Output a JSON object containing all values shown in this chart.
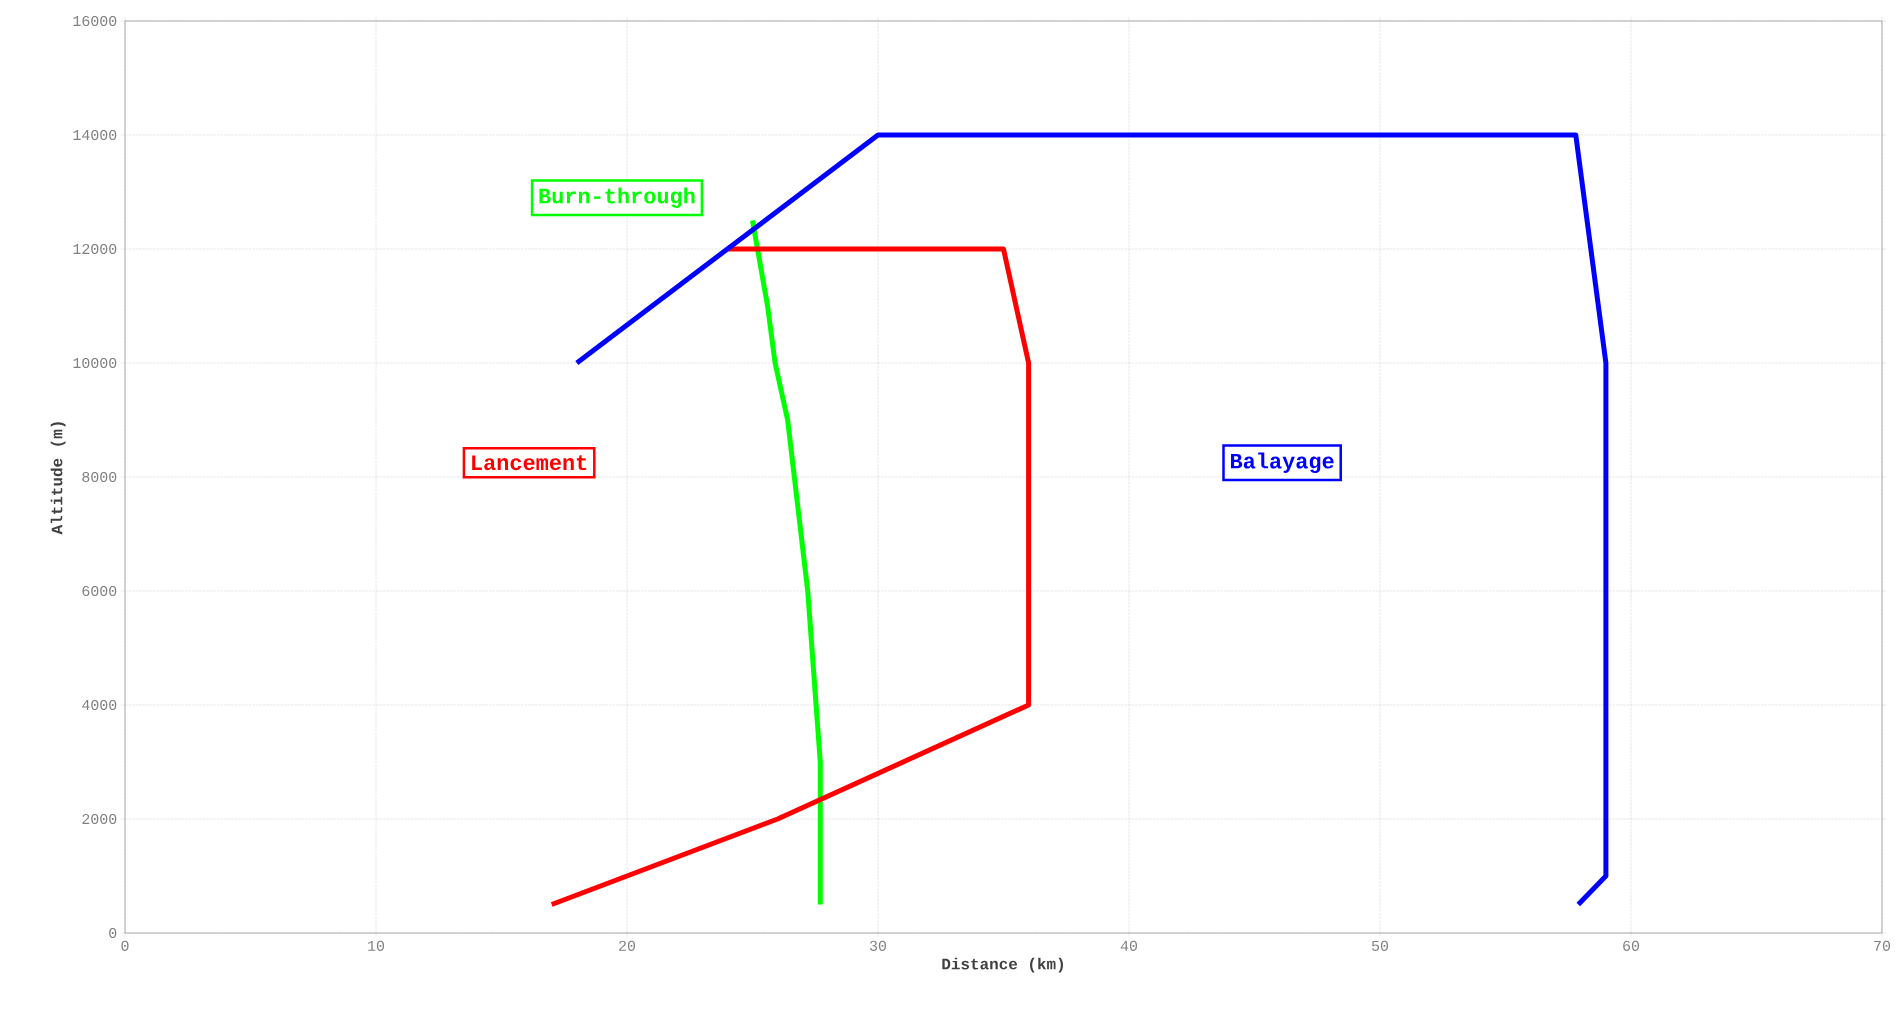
{
  "chart_data": {
    "type": "line",
    "xlabel": "Distance (km)",
    "ylabel": "Altitude (m)",
    "xlim": [
      0,
      70
    ],
    "xticks": [
      0,
      10,
      20,
      30,
      40,
      50,
      60,
      70
    ],
    "ylim": [
      0,
      16000
    ],
    "yticks": [
      0,
      2000,
      4000,
      6000,
      8000,
      10000,
      12000,
      14000,
      16000
    ],
    "grid": true,
    "marker": "none",
    "line_style": "solid",
    "series": [
      {
        "name": "Burn-through",
        "color": "#00ff00",
        "x": [
          25,
          25.6,
          25.9,
          26.4,
          27.2,
          27.7,
          27.7
        ],
        "values": [
          12500,
          11000,
          10000,
          9000,
          6000,
          3000,
          500
        ]
      },
      {
        "name": "Lancement",
        "color": "#ff0000",
        "x": [
          17,
          26,
          36,
          36,
          35,
          24
        ],
        "values": [
          500,
          2000,
          4000,
          10000,
          12000,
          12000
        ]
      },
      {
        "name": "Balayage",
        "color": "#0000ff",
        "x": [
          18,
          30,
          57.8,
          59,
          59,
          57.9
        ],
        "values": [
          10000,
          14000,
          14000,
          10000,
          1000,
          500
        ]
      }
    ]
  }
}
